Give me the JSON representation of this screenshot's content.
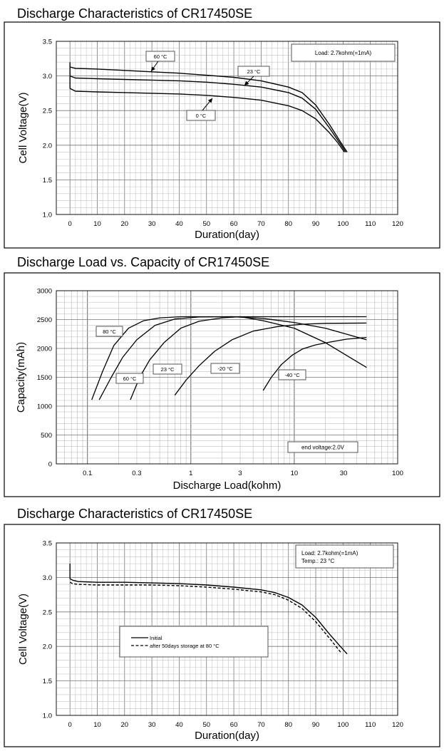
{
  "chart_data": [
    {
      "type": "line",
      "title": "Discharge Characteristics of CR17450SE",
      "xlabel": "Duration(day)",
      "ylabel": "Cell Voltage(V)",
      "xlim": [
        -5,
        120
      ],
      "ylim": [
        1.0,
        3.5
      ],
      "xticks": [
        0,
        10,
        20,
        30,
        40,
        50,
        60,
        70,
        80,
        90,
        100,
        110,
        120
      ],
      "yticks": [
        1.0,
        1.5,
        2.0,
        2.5,
        3.0,
        3.5
      ],
      "grid": true,
      "legend_box": "Load: 2.7kohm(=1mA)",
      "series": [
        {
          "name": "60 °C",
          "x": [
            0,
            0,
            2,
            10,
            20,
            30,
            40,
            50,
            60,
            70,
            80,
            85,
            90,
            95,
            99,
            101.5
          ],
          "y": [
            3.2,
            3.13,
            3.11,
            3.1,
            3.08,
            3.06,
            3.04,
            3.01,
            2.98,
            2.93,
            2.84,
            2.76,
            2.58,
            2.3,
            2.05,
            1.9
          ]
        },
        {
          "name": "23 °C",
          "x": [
            0,
            0,
            2,
            10,
            20,
            30,
            40,
            50,
            60,
            70,
            80,
            85,
            90,
            95,
            99,
            101
          ],
          "y": [
            3.15,
            3.0,
            2.97,
            2.96,
            2.95,
            2.94,
            2.93,
            2.91,
            2.88,
            2.84,
            2.76,
            2.68,
            2.52,
            2.25,
            2.02,
            1.9
          ]
        },
        {
          "name": "0 °C",
          "x": [
            0,
            0,
            2,
            10,
            20,
            30,
            40,
            50,
            60,
            70,
            80,
            85,
            90,
            95,
            98,
            100.5
          ],
          "y": [
            3.05,
            2.82,
            2.78,
            2.77,
            2.76,
            2.75,
            2.74,
            2.72,
            2.69,
            2.65,
            2.57,
            2.5,
            2.38,
            2.18,
            2.04,
            1.9
          ]
        }
      ],
      "annotations": [
        {
          "label": "60 °C",
          "points_to": [
            30,
            3.05
          ]
        },
        {
          "label": "23 °C",
          "points_to": [
            64,
            2.86
          ]
        },
        {
          "label": "0 °C",
          "points_to": [
            60,
            2.67
          ]
        }
      ]
    },
    {
      "type": "line",
      "title": "Discharge Load vs. Capacity of CR17450SE",
      "xlabel": "Discharge Load(kohm)",
      "ylabel": "Capacity(mAh)",
      "xscale": "log",
      "xlim": [
        0.05,
        100
      ],
      "ylim": [
        0,
        3000
      ],
      "xticks": [
        0.1,
        0.3,
        1,
        3,
        10,
        30,
        100
      ],
      "xtick_labels": [
        "0.1",
        "0.3",
        "1",
        "3",
        "10",
        "30",
        "100"
      ],
      "yticks": [
        0,
        500,
        1000,
        1500,
        2000,
        2500,
        3000
      ],
      "grid": true,
      "legend_box": "end voltage:2.0V",
      "series": [
        {
          "name": "80 °C",
          "x": [
            0.11,
            0.14,
            0.18,
            0.25,
            0.35,
            0.5,
            0.8,
            1.5,
            3,
            5,
            10,
            20,
            50
          ],
          "y": [
            1110,
            1600,
            2050,
            2350,
            2480,
            2530,
            2550,
            2550,
            2550,
            2480,
            2350,
            2100,
            1670
          ]
        },
        {
          "name": "60 °C",
          "x": [
            0.13,
            0.17,
            0.22,
            0.3,
            0.45,
            0.7,
            1.2,
            2.5,
            5,
            10,
            20,
            50
          ],
          "y": [
            1110,
            1500,
            1850,
            2150,
            2400,
            2510,
            2545,
            2550,
            2520,
            2450,
            2350,
            2150
          ]
        },
        {
          "name": "23 °C",
          "x": [
            0.26,
            0.32,
            0.4,
            0.55,
            0.8,
            1.2,
            2,
            3,
            5,
            10,
            20,
            50
          ],
          "y": [
            1110,
            1500,
            1800,
            2100,
            2350,
            2470,
            2530,
            2550,
            2550,
            2550,
            2550,
            2550
          ]
        },
        {
          "name": "-20 °C",
          "x": [
            0.7,
            0.9,
            1.2,
            1.7,
            2.5,
            4,
            7,
            12,
            20,
            50
          ],
          "y": [
            1190,
            1450,
            1700,
            1950,
            2150,
            2300,
            2380,
            2420,
            2435,
            2440
          ]
        },
        {
          "name": "-40 °C",
          "x": [
            5,
            6,
            7.5,
            9.5,
            12,
            16,
            22,
            32,
            50
          ],
          "y": [
            1270,
            1500,
            1720,
            1880,
            1990,
            2060,
            2110,
            2160,
            2190
          ]
        }
      ],
      "annotations": [
        {
          "label": "80 °C"
        },
        {
          "label": "60 °C"
        },
        {
          "label": "23 °C"
        },
        {
          "label": "-20 °C"
        },
        {
          "label": "-40 °C"
        }
      ]
    },
    {
      "type": "line",
      "title": "Discharge Characteristics of CR17450SE",
      "xlabel": "Duration(day)",
      "ylabel": "Cell Voltage(V)",
      "xlim": [
        -5,
        120
      ],
      "ylim": [
        1.0,
        3.5
      ],
      "xticks": [
        0,
        10,
        20,
        30,
        40,
        50,
        60,
        70,
        80,
        90,
        100,
        110,
        120
      ],
      "yticks": [
        1.0,
        1.5,
        2.0,
        2.5,
        3.0,
        3.5
      ],
      "grid": true,
      "legend_box": [
        "Load: 2.7kohm(=1mA)",
        "Temp.: 23  °C"
      ],
      "legend": [
        "Initial",
        "after 50days storage at 80  °C"
      ],
      "series": [
        {
          "name": "Initial",
          "style": "solid",
          "x": [
            0,
            0,
            1,
            3,
            10,
            20,
            30,
            40,
            50,
            60,
            70,
            75,
            80,
            85,
            90,
            95,
            99,
            101.5
          ],
          "y": [
            3.2,
            2.98,
            2.96,
            2.94,
            2.93,
            2.93,
            2.92,
            2.91,
            2.89,
            2.86,
            2.82,
            2.78,
            2.71,
            2.6,
            2.42,
            2.18,
            2.0,
            1.89
          ]
        },
        {
          "name": "after 50days storage at 80  °C",
          "style": "dashed",
          "x": [
            0,
            1,
            3,
            10,
            20,
            30,
            40,
            50,
            60,
            70,
            75,
            80,
            85,
            90,
            95,
            98,
            99.5
          ],
          "y": [
            2.93,
            2.91,
            2.9,
            2.89,
            2.89,
            2.89,
            2.88,
            2.86,
            2.83,
            2.79,
            2.75,
            2.67,
            2.55,
            2.36,
            2.12,
            1.97,
            1.9
          ]
        }
      ]
    }
  ]
}
